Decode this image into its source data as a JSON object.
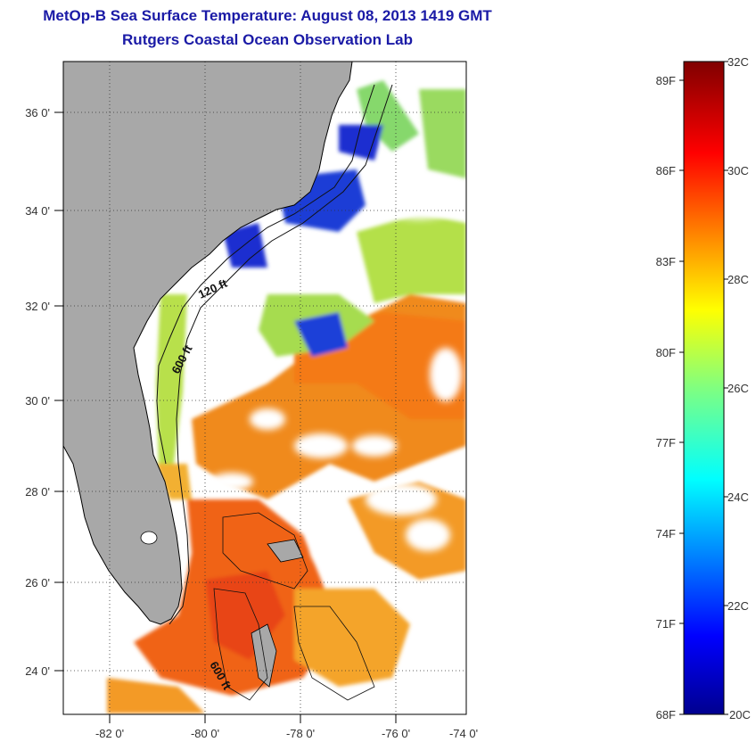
{
  "title": {
    "line1": "MetOp-B Sea Surface Temperature:  August 08, 2013 1419 GMT",
    "line2": "Rutgers Coastal Ocean Observation Lab"
  },
  "map": {
    "lon_ticks": [
      "-82 0'",
      "-80 0'",
      "-78 0'",
      "-76 0'",
      "-74 0'"
    ],
    "lat_ticks": [
      "36 0'",
      "34 0'",
      "32 0'",
      "30 0'",
      "28 0'",
      "26 0'",
      "24 0'"
    ],
    "contour_labels": [
      "120 ft",
      "600 ft",
      "600 ft"
    ],
    "colors": {
      "land": "#a8a8a8",
      "cloud": "#ffffff",
      "frame": "#000000"
    }
  },
  "colorbar": {
    "fahrenheit_labels": [
      "89F",
      "86F",
      "83F",
      "80F",
      "77F",
      "74F",
      "71F",
      "68F"
    ],
    "celsius_labels": [
      "32C",
      "30C",
      "28C",
      "26C",
      "24C",
      "22C",
      "20C"
    ],
    "celsius_range": [
      20,
      32
    ],
    "colormap": "jet"
  }
}
